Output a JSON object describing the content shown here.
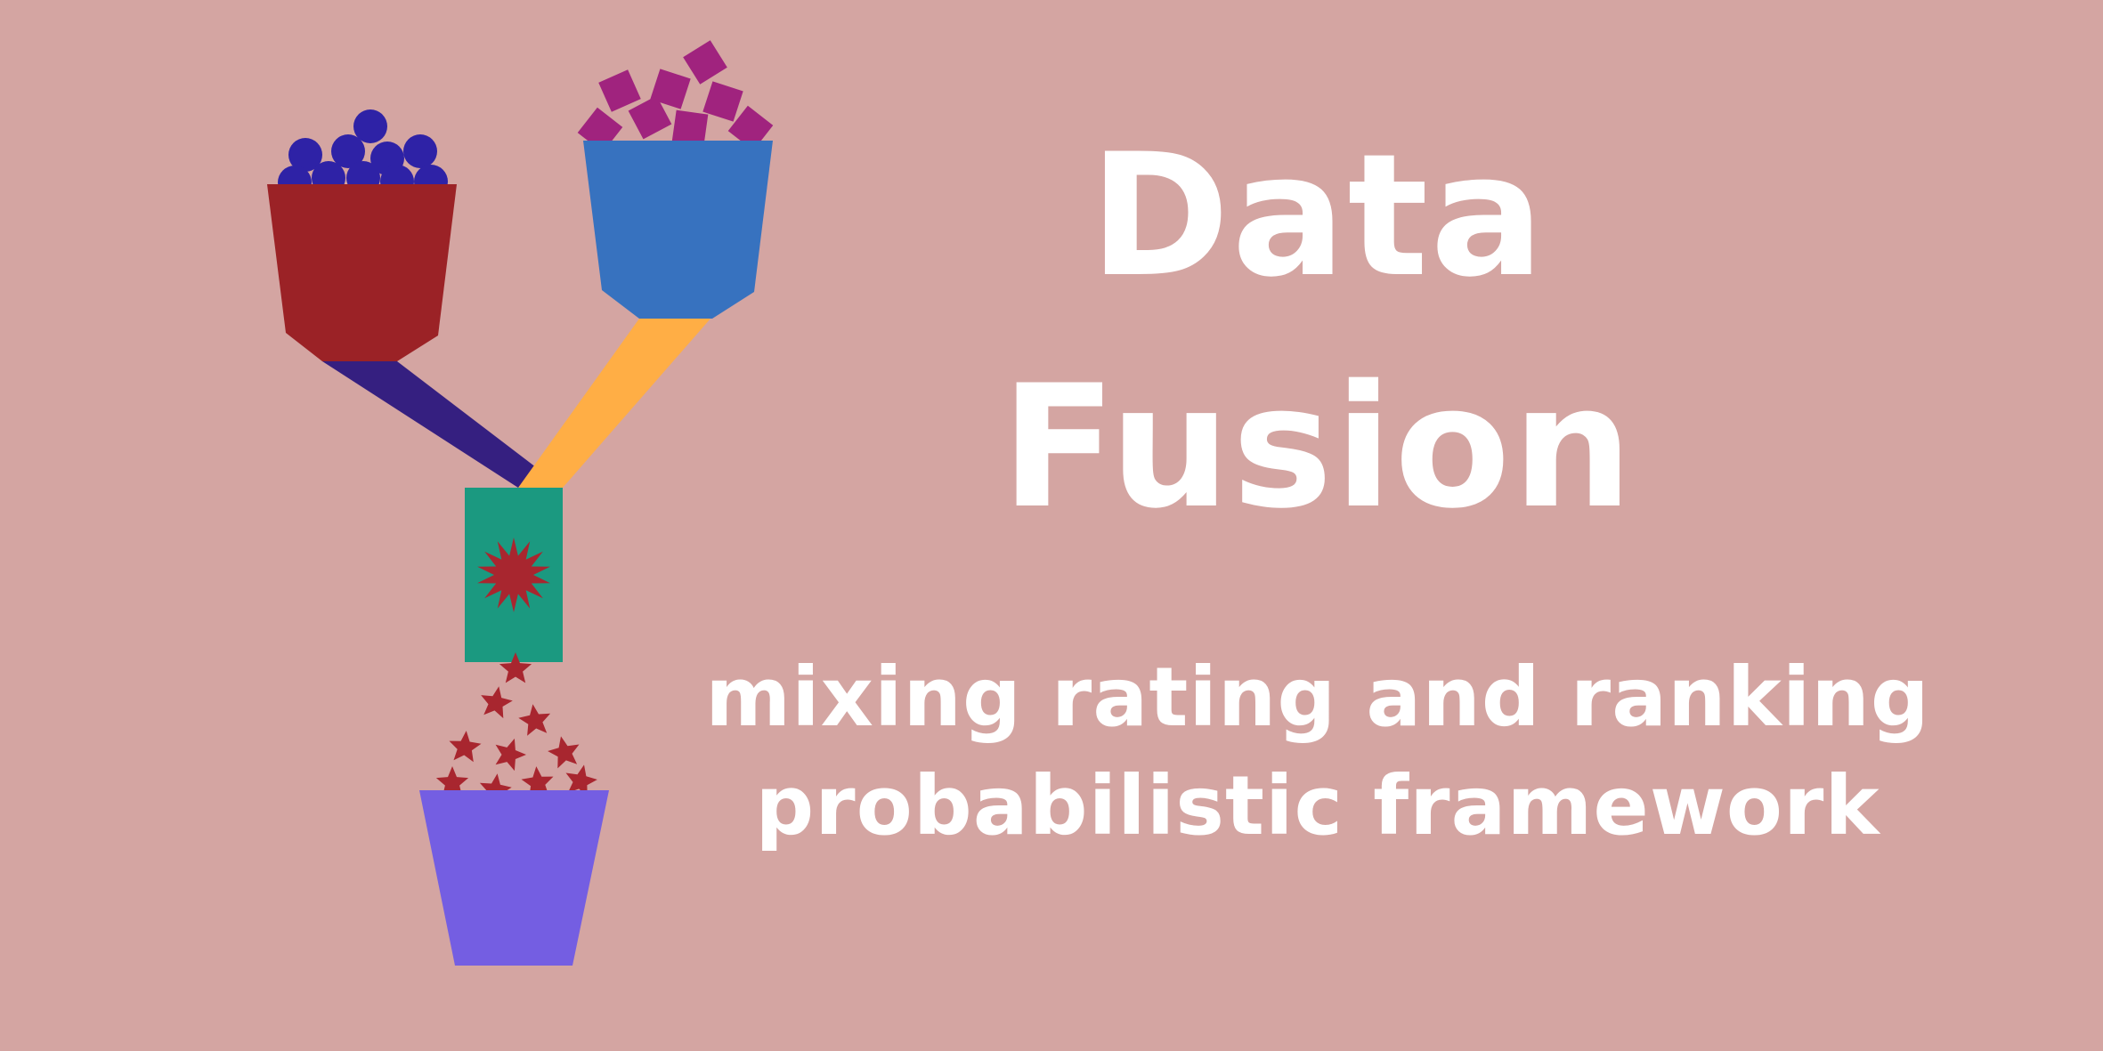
{
  "title": {
    "line1": "Data",
    "line2": "Fusion"
  },
  "subtitle": {
    "line1": "mixing rating and ranking",
    "line2": "probabilistic framework"
  },
  "colors": {
    "background": "#d4a5a2",
    "red_funnel": "#9b2226",
    "blue_funnel": "#3772bf",
    "circles": "#2e22a6",
    "squares": "#a0237e",
    "left_pipe": "#351f80",
    "right_pipe": "#ffae45",
    "mixer": "#1b9980",
    "starburst": "#a8262f",
    "stars": "#a8262f",
    "output_bucket": "#745ee2",
    "text": "#ffffff"
  },
  "icons": {
    "left_funnel": "red-funnel-icon",
    "right_funnel": "blue-funnel-icon",
    "mixer": "mixer-box-icon",
    "output": "output-bucket-icon",
    "stars": "star-icon"
  }
}
